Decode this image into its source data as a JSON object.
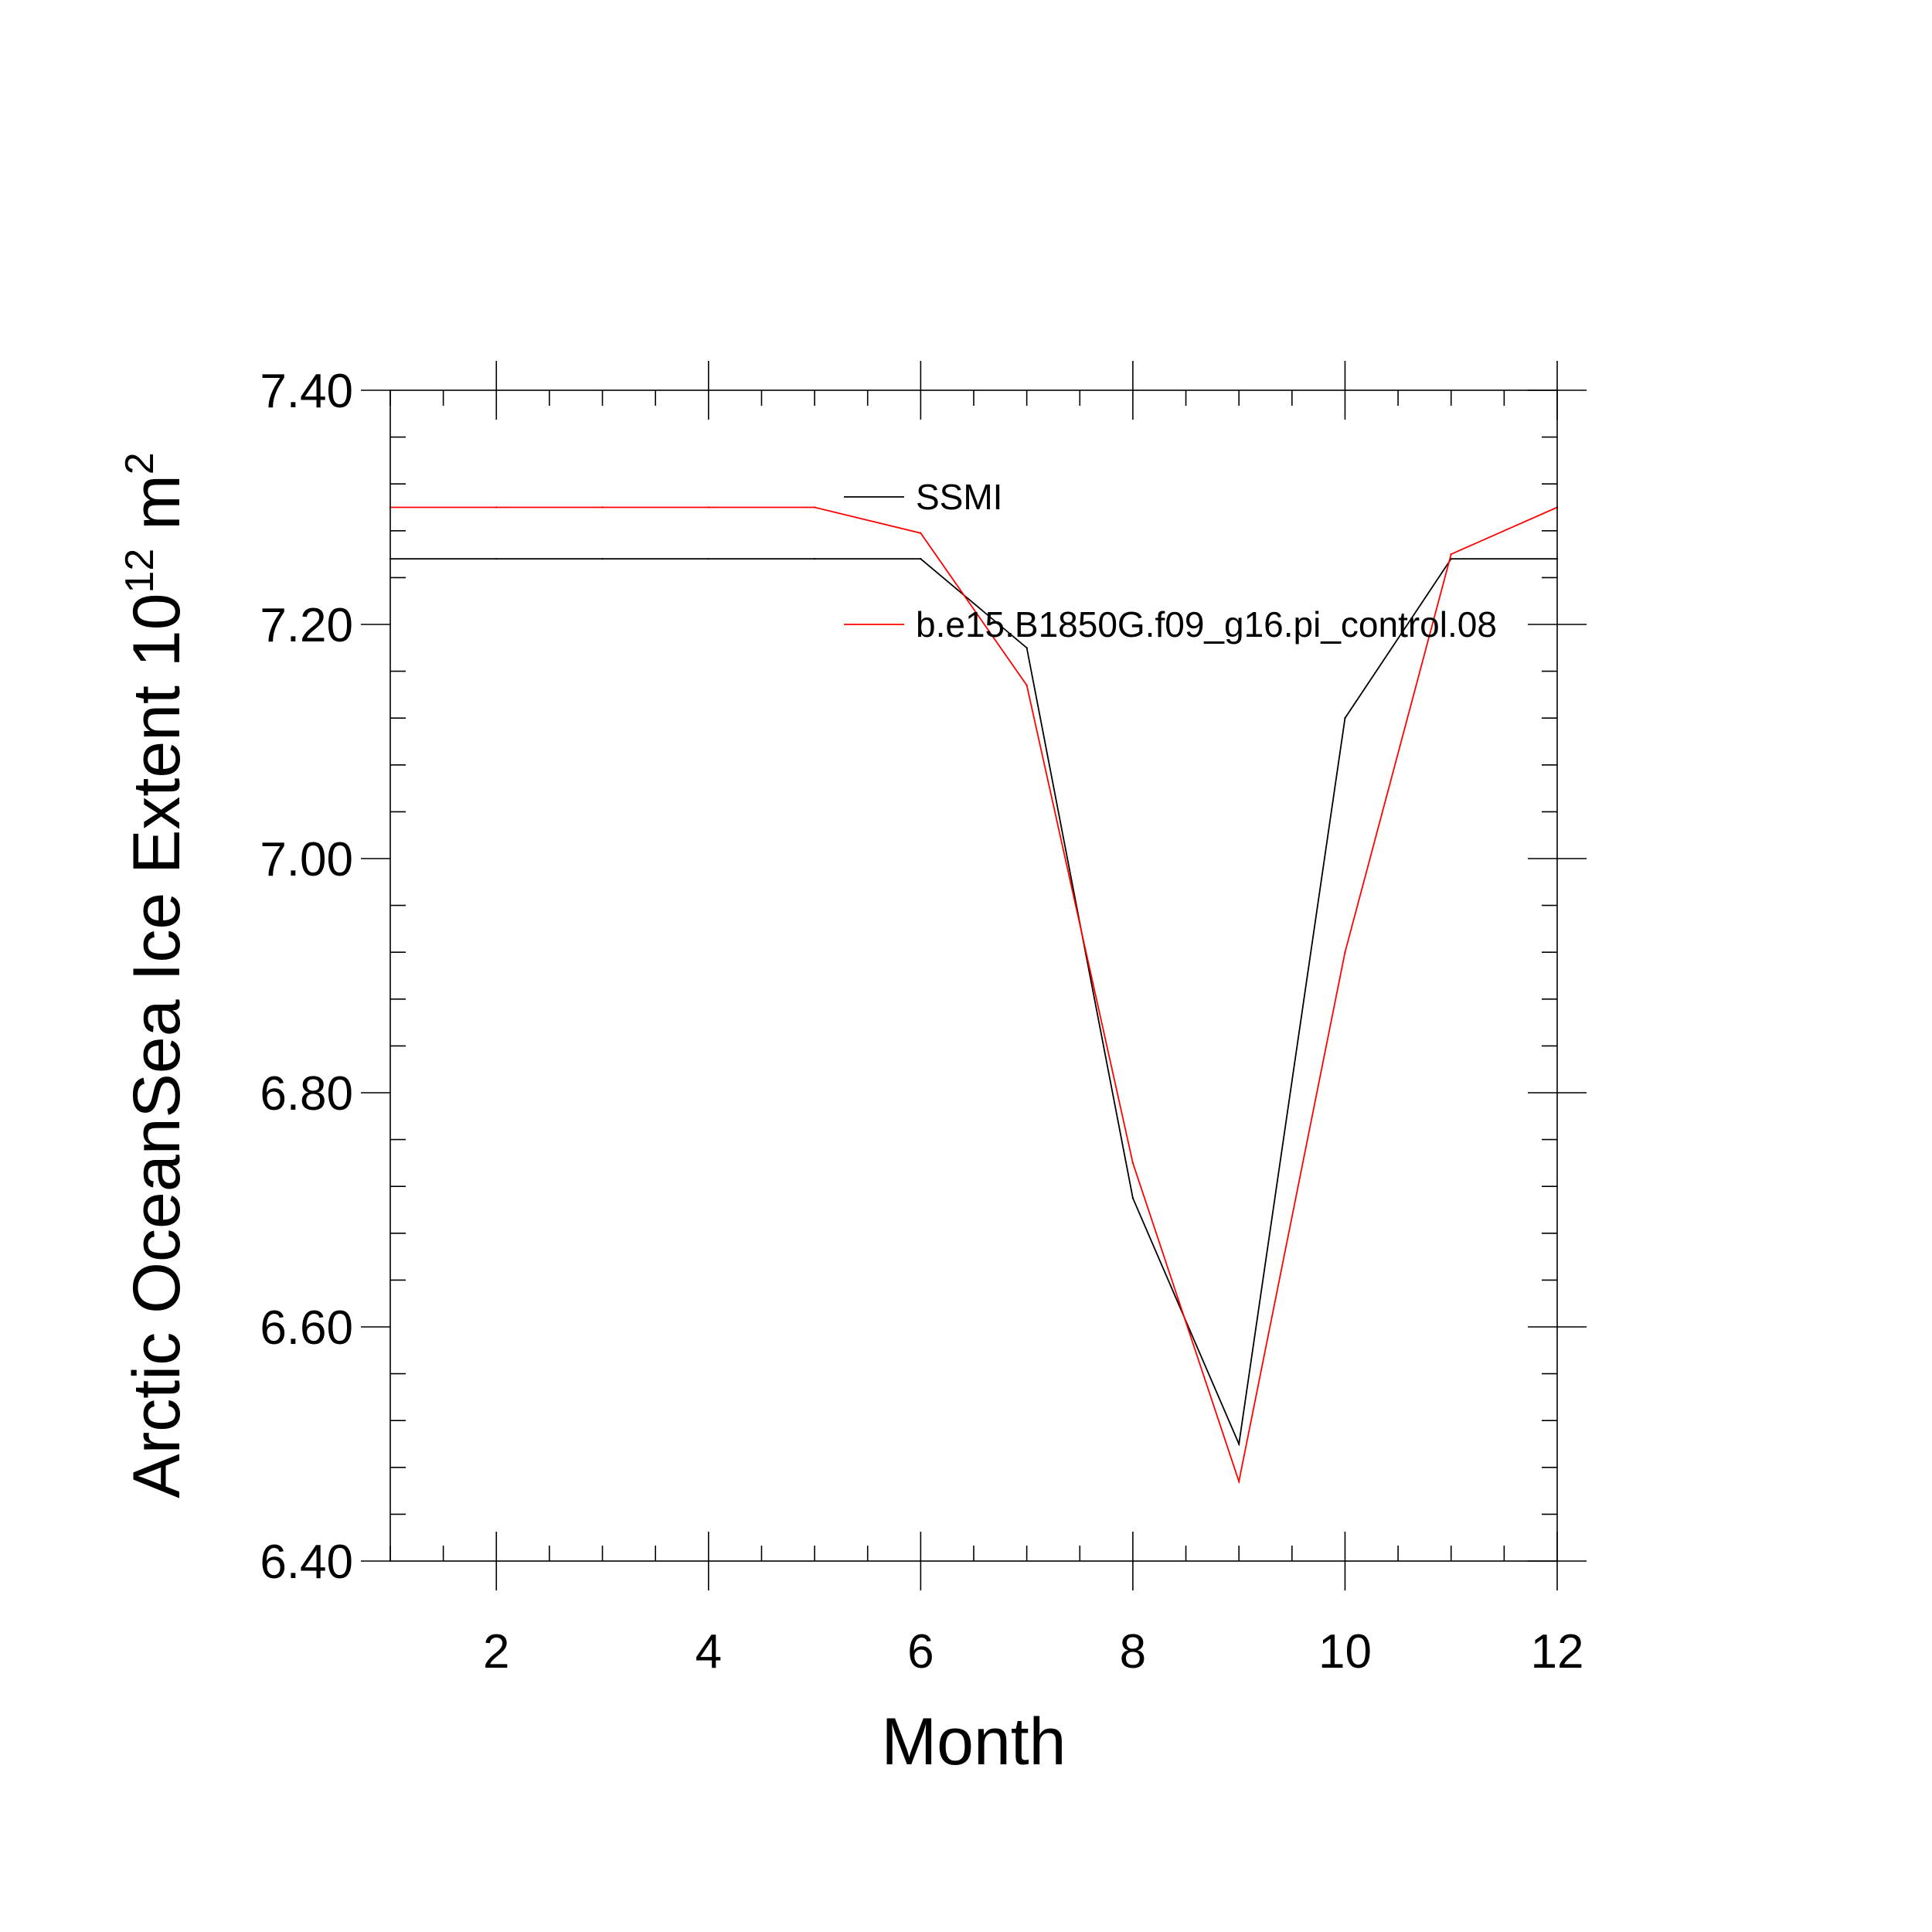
{
  "chart_data": {
    "type": "line",
    "xlabel": "Month",
    "ylabel_main": "Arctic OceanSea Ice Extent 10",
    "ylabel_exp1": "12",
    "ylabel_unit": " m",
    "ylabel_exp2": "2",
    "xlim": [
      1,
      12
    ],
    "ylim": [
      6.4,
      7.4
    ],
    "x_ticks": [
      2,
      4,
      6,
      8,
      10,
      12
    ],
    "x_tick_labels": [
      "2",
      "4",
      "6",
      "8",
      "10",
      "12"
    ],
    "y_ticks": [
      6.4,
      6.6,
      6.8,
      7.0,
      7.2,
      7.4
    ],
    "y_tick_labels": [
      "6.40",
      "6.60",
      "6.80",
      "7.00",
      "7.20",
      "7.40"
    ],
    "grid": false,
    "legend_position": "upper-right",
    "series": [
      {
        "name": "SSMI",
        "color": "#000000",
        "x": [
          1,
          2,
          3,
          4,
          5,
          6,
          7,
          8,
          9,
          10,
          11,
          12
        ],
        "values": [
          7.256,
          7.256,
          7.256,
          7.256,
          7.256,
          7.256,
          7.18,
          6.71,
          6.5,
          7.12,
          7.256,
          7.256
        ]
      },
      {
        "name": "b.e15.B1850G.f09_g16.pi_control.08",
        "color": "#ff0000",
        "x": [
          1,
          2,
          3,
          4,
          5,
          6,
          7,
          8,
          9,
          10,
          11,
          12
        ],
        "values": [
          7.3,
          7.3,
          7.3,
          7.3,
          7.3,
          7.278,
          7.148,
          6.74,
          6.468,
          6.92,
          7.26,
          7.3
        ]
      }
    ]
  }
}
